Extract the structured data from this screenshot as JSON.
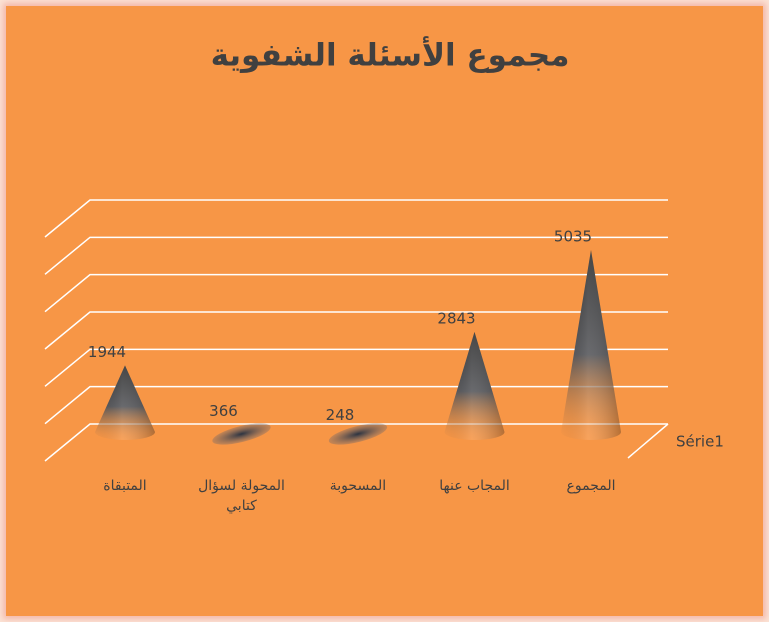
{
  "chart_data": {
    "type": "cone",
    "title": "مجموع الأسئلة الشفوية",
    "categories": [
      "المتبقاة",
      "المحولة لسؤال كتابي",
      "المسحوبة",
      "المجاب عنها",
      "المجموع"
    ],
    "series": [
      {
        "name": "Série1",
        "color": "#404040",
        "values": [
          1944,
          366,
          248,
          2843,
          5035
        ]
      }
    ],
    "ylim": [
      0,
      6000
    ],
    "yticks": [
      0,
      1000,
      2000,
      3000,
      4000,
      5000,
      6000
    ],
    "grid": true
  }
}
